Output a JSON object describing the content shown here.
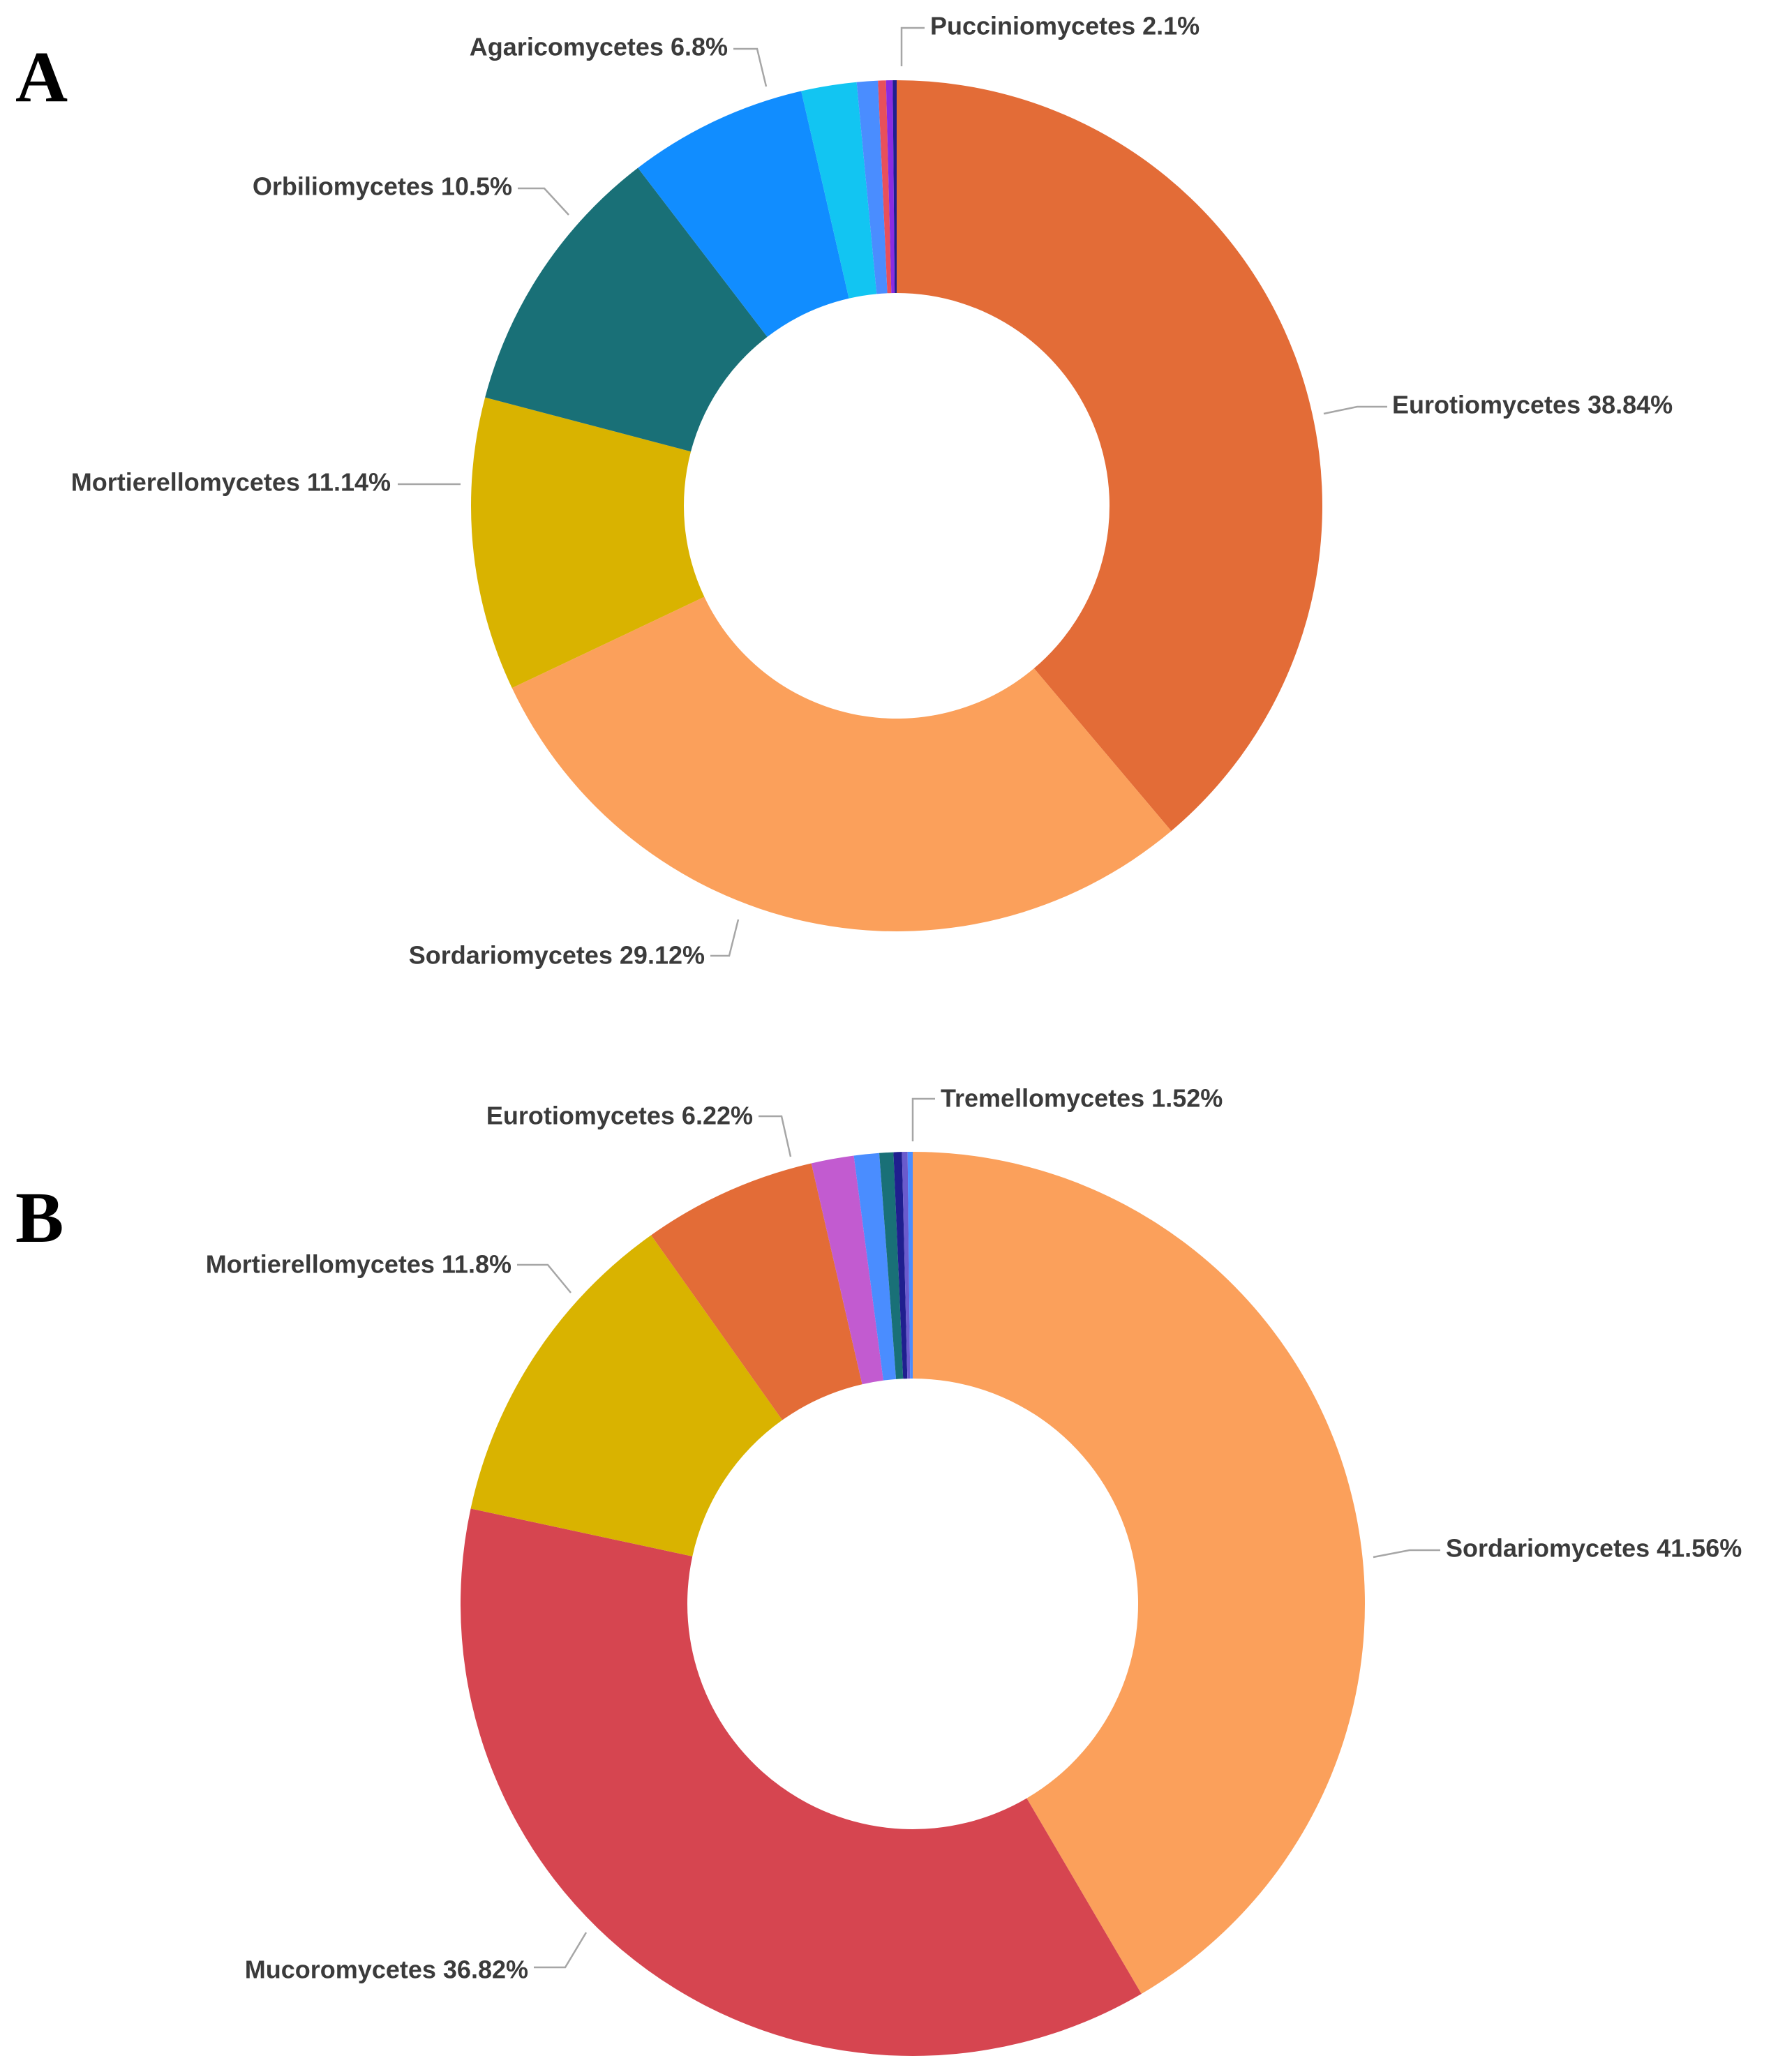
{
  "chart_data": [
    {
      "type": "pie",
      "panel_label": "A",
      "donut": true,
      "title": "",
      "series": [
        {
          "name": "Eurotiomycetes",
          "value": 38.84,
          "label": "Eurotiomycetes 38.84%",
          "color": "#E36C37"
        },
        {
          "name": "Sordariomycetes",
          "value": 29.12,
          "label": "Sordariomycetes 29.12%",
          "color": "#FBA05B"
        },
        {
          "name": "Mortierellomycetes",
          "value": 11.14,
          "label": "Mortierellomycetes 11.14%",
          "color": "#D9B300"
        },
        {
          "name": "Orbiliomycetes",
          "value": 10.5,
          "label": "Orbiliomycetes 10.5%",
          "color": "#197077"
        },
        {
          "name": "Agaricomycetes",
          "value": 6.8,
          "label": "Agaricomycetes 6.8%",
          "color": "#118DFF"
        },
        {
          "name": "Pucciniomycetes",
          "value": 2.1,
          "label": "Pucciniomycetes 2.1%",
          "color": "#12C5F2"
        },
        {
          "name": "",
          "value": 0.8,
          "label": "",
          "color": "#4A8DFF"
        },
        {
          "name": "",
          "value": 0.3,
          "label": "",
          "color": "#E8505B"
        },
        {
          "name": "",
          "value": 0.25,
          "label": "",
          "color": "#8A2BE2"
        },
        {
          "name": "",
          "value": 0.15,
          "label": "",
          "color": "#1F1F8F"
        }
      ]
    },
    {
      "type": "pie",
      "panel_label": "B",
      "donut": true,
      "title": "",
      "series": [
        {
          "name": "Sordariomycetes",
          "value": 41.56,
          "label": "Sordariomycetes 41.56%",
          "color": "#FBA05B"
        },
        {
          "name": "Mucoromycetes",
          "value": 36.82,
          "label": "Mucoromycetes 36.82%",
          "color": "#D64550"
        },
        {
          "name": "Mortierellomycetes",
          "value": 11.8,
          "label": "Mortierellomycetes 11.8%",
          "color": "#D9B300"
        },
        {
          "name": "Eurotiomycetes",
          "value": 6.22,
          "label": "Eurotiomycetes 6.22%",
          "color": "#E36C37"
        },
        {
          "name": "Tremellomycetes",
          "value": 1.52,
          "label": "Tremellomycetes 1.52%",
          "color": "#C25BD0"
        },
        {
          "name": "",
          "value": 0.9,
          "label": "",
          "color": "#4A8DFF"
        },
        {
          "name": "",
          "value": 0.5,
          "label": "",
          "color": "#197077"
        },
        {
          "name": "",
          "value": 0.3,
          "label": "",
          "color": "#1F1F8F"
        },
        {
          "name": "",
          "value": 0.2,
          "label": "",
          "color": "#6A5ACD"
        },
        {
          "name": "",
          "value": 0.18,
          "label": "",
          "color": "#4A8DFF"
        }
      ]
    }
  ]
}
